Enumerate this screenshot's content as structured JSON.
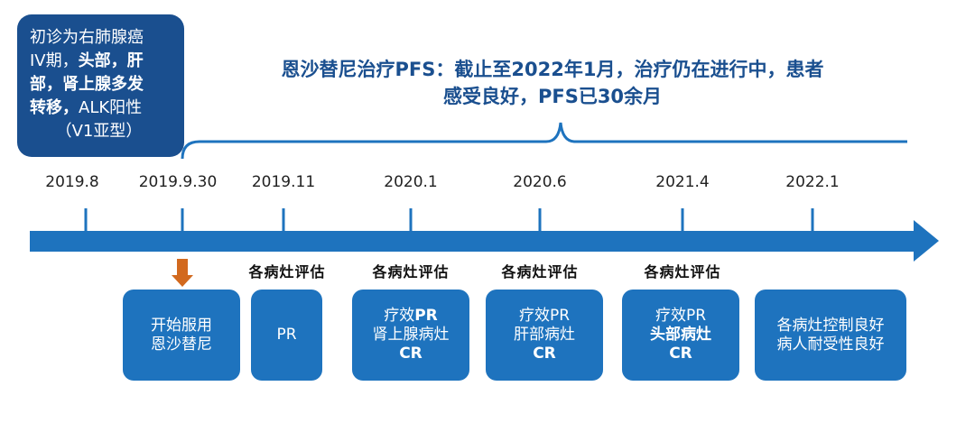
{
  "diagnosis": {
    "line1": "初诊为右肺腺癌",
    "line2_a": "IV期，",
    "line2_b": "头部，肝",
    "line3": "部，肾上腺多发",
    "line4_a": "转移，",
    "line4_b": "ALK阳性",
    "line5": "（V1亚型）"
  },
  "pfs_title": {
    "line1": "恩沙替尼治疗PFS：截止至2022年1月，治疗仍在进行中，患者",
    "line2": "感受良好，PFS已30余月"
  },
  "timeline": {
    "dates": [
      "2019.8",
      "2019.9.30",
      "2019.11",
      "2020.1",
      "2020.6",
      "2021.4",
      "2022.1"
    ],
    "eval_label": "各病灶评估"
  },
  "cards": {
    "start": [
      "开始服用",
      "恩沙替尼"
    ],
    "c2": "PR",
    "c3": [
      "疗效",
      "PR",
      "肾上腺病灶",
      "CR"
    ],
    "c4": [
      "疗效PR",
      "肝部病灶",
      "CR"
    ],
    "c5": [
      "疗效PR",
      "头部病灶",
      "CR"
    ],
    "c6": [
      "各病灶控制良好",
      "病人耐受性良好"
    ]
  },
  "colors": {
    "dark_blue": "#1a4f8f",
    "card_blue": "#1e73be",
    "axis_blue": "#1e73be",
    "marker_orange": "#d2691e"
  }
}
